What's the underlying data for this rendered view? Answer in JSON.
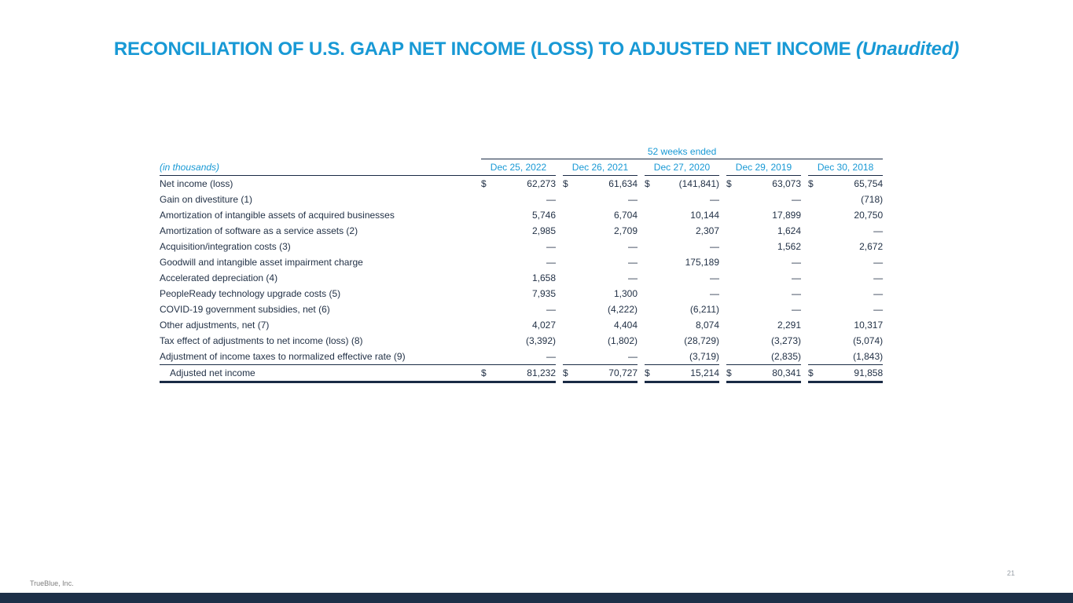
{
  "slide": {
    "title": "RECONCILIATION OF U.S. GAAP NET INCOME (LOSS) TO ADJUSTED NET INCOME",
    "title_suffix": "(Unaudited)",
    "footer": "TrueBlue, Inc.",
    "page_number": "21",
    "colors": {
      "accent_blue": "#1899d5",
      "rule_navy": "#1a2b45",
      "body_text_navy": "#233247",
      "footer_bar_navy": "#1d3048",
      "footer_gray": "#7f7f7f"
    }
  },
  "table": {
    "group_header": "52 weeks ended",
    "label_header": "(in thousands)",
    "columns": [
      "Dec 25, 2022",
      "Dec 26, 2021",
      "Dec 27, 2020",
      "Dec 29, 2019",
      "Dec 30, 2018"
    ],
    "currency_symbol": "$",
    "rows": [
      {
        "label": "Net income (loss)",
        "dollar": true,
        "values": [
          "62,273",
          "61,634",
          "(141,841)",
          "63,073",
          "65,754"
        ]
      },
      {
        "label": "Gain on divestiture (1)",
        "dollar": false,
        "values": [
          "—",
          "—",
          "—",
          "—",
          "(718)"
        ]
      },
      {
        "label": "Amortization of intangible assets of acquired businesses",
        "dollar": false,
        "values": [
          "5,746",
          "6,704",
          "10,144",
          "17,899",
          "20,750"
        ]
      },
      {
        "label": "Amortization of software as a service assets (2)",
        "dollar": false,
        "values": [
          "2,985",
          "2,709",
          "2,307",
          "1,624",
          "—"
        ]
      },
      {
        "label": "Acquisition/integration costs (3)",
        "dollar": false,
        "values": [
          "—",
          "—",
          "—",
          "1,562",
          "2,672"
        ]
      },
      {
        "label": "Goodwill and intangible asset impairment charge",
        "dollar": false,
        "values": [
          "—",
          "—",
          "175,189",
          "—",
          "—"
        ]
      },
      {
        "label": "Accelerated depreciation (4)",
        "dollar": false,
        "values": [
          "1,658",
          "—",
          "—",
          "—",
          "—"
        ]
      },
      {
        "label": "PeopleReady technology upgrade costs (5)",
        "dollar": false,
        "values": [
          "7,935",
          "1,300",
          "—",
          "—",
          "—"
        ]
      },
      {
        "label": "COVID-19 government subsidies, net (6)",
        "dollar": false,
        "values": [
          "—",
          "(4,222)",
          "(6,211)",
          "—",
          "—"
        ]
      },
      {
        "label": "Other adjustments, net (7)",
        "dollar": false,
        "values": [
          "4,027",
          "4,404",
          "8,074",
          "2,291",
          "10,317"
        ]
      },
      {
        "label": "Tax effect of adjustments to net income (loss) (8)",
        "dollar": false,
        "values": [
          "(3,392)",
          "(1,802)",
          "(28,729)",
          "(3,273)",
          "(5,074)"
        ]
      },
      {
        "label": "Adjustment of income taxes to normalized effective rate (9)",
        "dollar": false,
        "values": [
          "—",
          "—",
          "(3,719)",
          "(2,835)",
          "(1,843)"
        ]
      }
    ],
    "total_row": {
      "label": "Adjusted net income",
      "dollar": true,
      "values": [
        "81,232",
        "70,727",
        "15,214",
        "80,341",
        "91,858"
      ]
    }
  }
}
